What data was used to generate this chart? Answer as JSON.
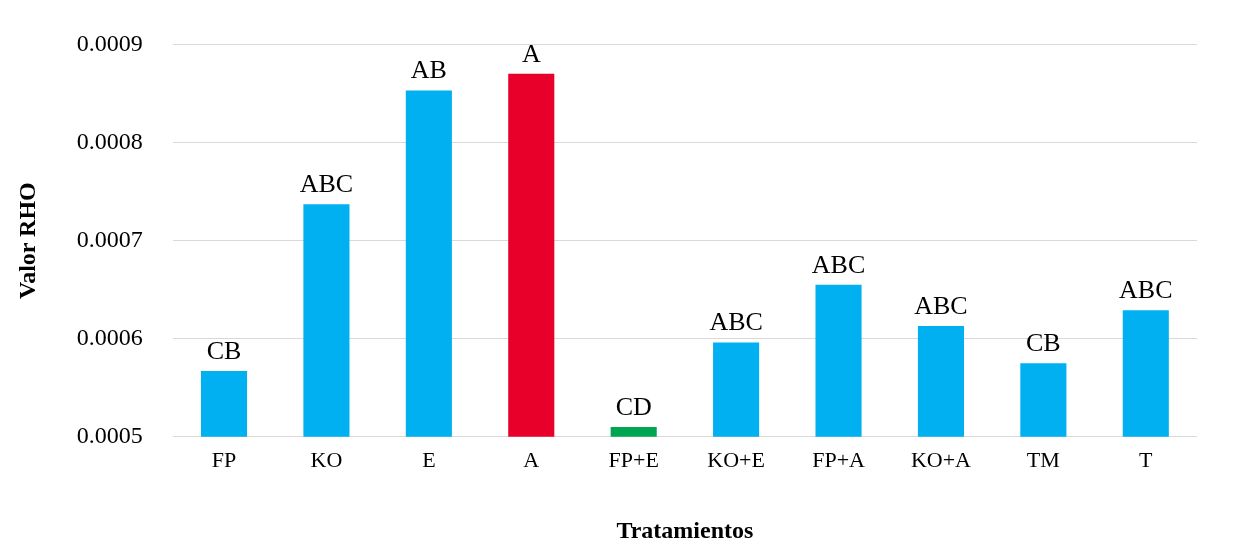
{
  "chart_data": {
    "type": "bar",
    "xlabel": "Tratamientos",
    "ylabel": "Valor RHO",
    "categories": [
      "FP",
      "KO",
      "E",
      "A",
      "FP+E",
      "KO+E",
      "FP+A",
      "KO+A",
      "TM",
      "T"
    ],
    "values": [
      0.000567,
      0.000737,
      0.000853,
      0.00087,
      0.00051,
      0.000596,
      0.000655,
      0.000613,
      0.000575,
      0.000629
    ],
    "colors": [
      "#00b0f0",
      "#00b0f0",
      "#00b0f0",
      "#e8002a",
      "#00a550",
      "#00b0f0",
      "#00b0f0",
      "#00b0f0",
      "#00b0f0",
      "#00b0f0"
    ],
    "ylim": [
      0.0005,
      0.0009
    ],
    "yticks": [
      0.0005,
      0.0006,
      0.0007,
      0.0008,
      0.0009
    ],
    "grid": "y",
    "legend": false,
    "annotations": [
      {
        "text": "CB",
        "x": "FP",
        "y": 0.000567
      },
      {
        "text": "ABC",
        "x": "KO",
        "y": 0.000737
      },
      {
        "text": "AB",
        "x": "E",
        "y": 0.000853
      },
      {
        "text": "A",
        "x": "A",
        "y": 0.00087
      },
      {
        "text": "CD",
        "x": "FP+E",
        "y": 0.00051
      },
      {
        "text": "ABC",
        "x": "KO+E",
        "y": 0.000596
      },
      {
        "text": "ABC",
        "x": "FP+A",
        "y": 0.000655
      },
      {
        "text": "ABC",
        "x": "KO+A",
        "y": 0.000613
      },
      {
        "text": "CB",
        "x": "TM",
        "y": 0.000575
      },
      {
        "text": "ABC",
        "x": "T",
        "y": 0.000629
      }
    ]
  }
}
